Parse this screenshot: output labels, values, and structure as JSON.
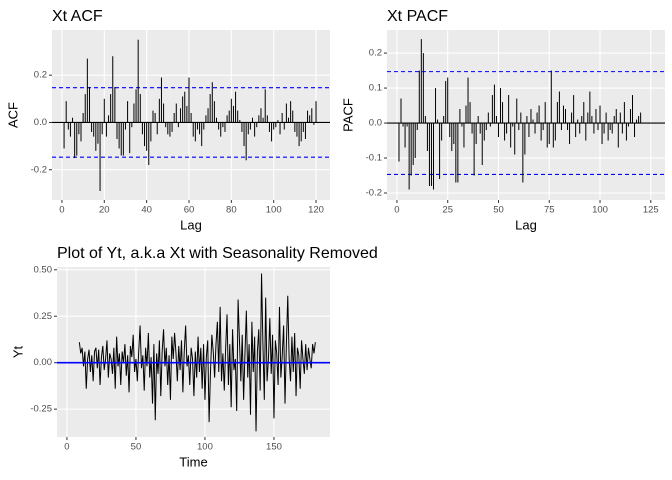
{
  "chart_data": [
    {
      "type": "bar",
      "title": "Xt ACF",
      "x_label": "Lag",
      "y_label": "ACF",
      "x": [
        1,
        2,
        3,
        4,
        5,
        6,
        7,
        8,
        9,
        10,
        11,
        12,
        13,
        14,
        15,
        16,
        17,
        18,
        19,
        20,
        21,
        22,
        23,
        24,
        25,
        26,
        27,
        28,
        29,
        30,
        31,
        32,
        33,
        34,
        35,
        36,
        37,
        38,
        39,
        40,
        41,
        42,
        43,
        44,
        45,
        46,
        47,
        48,
        49,
        50,
        51,
        52,
        53,
        54,
        55,
        56,
        57,
        58,
        59,
        60,
        61,
        62,
        63,
        64,
        65,
        66,
        67,
        68,
        69,
        70,
        71,
        72,
        73,
        74,
        75,
        76,
        77,
        78,
        79,
        80,
        81,
        82,
        83,
        84,
        85,
        86,
        87,
        88,
        89,
        90,
        91,
        92,
        93,
        94,
        95,
        96,
        97,
        98,
        99,
        100,
        101,
        102,
        103,
        104,
        105,
        106,
        107,
        108,
        109,
        110,
        111,
        112,
        113,
        114,
        115,
        116,
        117,
        118,
        119,
        120
      ],
      "values": [
        -0.11,
        0.09,
        -0.03,
        -0.06,
        0.02,
        -0.15,
        -0.14,
        -0.05,
        -0.08,
        0.04,
        0.12,
        0.27,
        0.15,
        -0.04,
        -0.06,
        -0.12,
        -0.09,
        -0.29,
        -0.05,
        0.1,
        -0.06,
        0.03,
        0.12,
        0.28,
        0.15,
        -0.07,
        -0.11,
        -0.14,
        -0.14,
        -0.03,
        0.09,
        -0.13,
        -0.02,
        0.08,
        0.14,
        0.35,
        0.12,
        -0.05,
        -0.1,
        -0.12,
        -0.18,
        -0.08,
        0.05,
        0.04,
        -0.05,
        0.1,
        0.19,
        0.08,
        -0.02,
        -0.05,
        -0.06,
        -0.04,
        0.04,
        0.08,
        -0.02,
        0.06,
        0.11,
        0.13,
        0.07,
        0.19,
        0.04,
        -0.06,
        -0.08,
        -0.03,
        -0.05,
        -0.1,
        -0.03,
        0.03,
        0.06,
        0.12,
        0.17,
        0.09,
        0.02,
        -0.03,
        -0.06,
        -0.02,
        -0.04,
        0.03,
        0.05,
        0.1,
        0.07,
        0.13,
        0.05,
        0.01,
        -0.04,
        -0.1,
        -0.16,
        -0.05,
        -0.03,
        0.02,
        -0.06,
        -0.02,
        0.03,
        0.06,
        0.02,
        0.14,
        0.03,
        -0.04,
        -0.08,
        -0.03,
        -0.02,
        0.01,
        -0.05,
        0.04,
        -0.03,
        0.08,
        0.02,
        0.09,
        0.05,
        -0.04,
        -0.06,
        -0.1,
        -0.08,
        -0.04,
        -0.07,
        0.05,
        0.03,
        0.06,
        -0.01,
        0.09
      ],
      "color": "#000000",
      "ci": [
        -0.147,
        0.147
      ],
      "ci_color": "#0000ff",
      "zero_color": "#000000",
      "xlim": [
        -4.7,
        126.6
      ],
      "xticks": [
        0,
        20,
        40,
        60,
        80,
        100,
        120
      ],
      "ylim": [
        -0.328,
        0.391
      ],
      "yticks": [
        -0.2,
        {
          "value": 0,
          "label": "0.0"
        },
        0.2
      ],
      "grid": true
    },
    {
      "type": "bar",
      "title": "Xt PACF",
      "x_label": "Lag",
      "y_label": "PACF",
      "x": [
        1,
        2,
        3,
        4,
        5,
        6,
        7,
        8,
        9,
        10,
        11,
        12,
        13,
        14,
        15,
        16,
        17,
        18,
        19,
        20,
        21,
        22,
        23,
        24,
        25,
        26,
        27,
        28,
        29,
        30,
        31,
        32,
        33,
        34,
        35,
        36,
        37,
        38,
        39,
        40,
        41,
        42,
        43,
        44,
        45,
        46,
        47,
        48,
        49,
        50,
        51,
        52,
        53,
        54,
        55,
        56,
        57,
        58,
        59,
        60,
        61,
        62,
        63,
        64,
        65,
        66,
        67,
        68,
        69,
        70,
        71,
        72,
        73,
        74,
        75,
        76,
        77,
        78,
        79,
        80,
        81,
        82,
        83,
        84,
        85,
        86,
        87,
        88,
        89,
        90,
        91,
        92,
        93,
        94,
        95,
        96,
        97,
        98,
        99,
        100,
        101,
        102,
        103,
        104,
        105,
        106,
        107,
        108,
        109,
        110,
        111,
        112,
        113,
        114,
        115,
        116,
        117,
        118,
        119,
        120
      ],
      "values": [
        -0.11,
        0.07,
        -0.01,
        -0.07,
        -0.01,
        -0.19,
        -0.15,
        -0.12,
        -0.1,
        -0.02,
        0.15,
        0.24,
        0.2,
        0.02,
        -0.08,
        -0.18,
        -0.18,
        -0.19,
        0.1,
        0.01,
        -0.16,
        -0.05,
        0.02,
        0.12,
        0.13,
        -0.04,
        -0.08,
        -0.06,
        -0.17,
        -0.17,
        0.04,
        -0.01,
        -0.07,
        0.05,
        0.13,
        0.06,
        -0.03,
        -0.15,
        -0.06,
        0.02,
        -0.03,
        -0.12,
        -0.05,
        -0.02,
        0.03,
        -0.01,
        0.08,
        0.11,
        0.02,
        -0.04,
        0.1,
        0.06,
        -0.05,
        -0.03,
        0.08,
        -0.07,
        -0.01,
        -0.09,
        0.07,
        -0.02,
        0.03,
        -0.17,
        -0.09,
        0.02,
        -0.04,
        0.04,
        0.01,
        -0.03,
        0.03,
        0.05,
        -0.05,
        -0.02,
        0.06,
        -0.07,
        -0.06,
        0.15,
        -0.07,
        -0.05,
        0.06,
        0.09,
        -0.02,
        0.05,
        0.04,
        -0.02,
        -0.06,
        0.03,
        0.08,
        -0.04,
        0.01,
        -0.03,
        0.02,
        0.06,
        -0.05,
        0.03,
        0.09,
        0.02,
        -0.03,
        0.04,
        -0.02,
        0.05,
        -0.06,
        -0.03,
        0.03,
        -0.05,
        -0.02,
        -0.03,
        0.02,
        0.04,
        -0.07,
        0.03,
        -0.03,
        0.06,
        -0.05,
        -0.01,
        0.04,
        0.08,
        -0.04,
        0.01,
        0.02,
        0.03
      ],
      "color": "#000000",
      "ci": [
        -0.147,
        0.147
      ],
      "ci_color": "#0000ff",
      "zero_color": "#000000",
      "xlim": [
        -4.9,
        132
      ],
      "xticks": [
        0,
        25,
        50,
        75,
        100,
        125
      ],
      "ylim": [
        -0.22,
        0.266
      ],
      "yticks": [
        -0.2,
        -0.1,
        {
          "value": 0,
          "label": "0.0"
        },
        0.1,
        0.2
      ],
      "grid": true
    },
    {
      "type": "line",
      "title": "Plot of Yt, a.k.a Xt with Seasonality Removed",
      "x_label": "Time",
      "y_label": "Yt",
      "x": [
        9,
        10,
        11,
        12,
        13,
        14,
        15,
        16,
        17,
        18,
        19,
        20,
        21,
        22,
        23,
        24,
        25,
        26,
        27,
        28,
        29,
        30,
        31,
        32,
        33,
        34,
        35,
        36,
        37,
        38,
        39,
        40,
        41,
        42,
        43,
        44,
        45,
        46,
        47,
        48,
        49,
        50,
        51,
        52,
        53,
        54,
        55,
        56,
        57,
        58,
        59,
        60,
        61,
        62,
        63,
        64,
        65,
        66,
        67,
        68,
        69,
        70,
        71,
        72,
        73,
        74,
        75,
        76,
        77,
        78,
        79,
        80,
        81,
        82,
        83,
        84,
        85,
        86,
        87,
        88,
        89,
        90,
        91,
        92,
        93,
        94,
        95,
        96,
        97,
        98,
        99,
        100,
        101,
        102,
        103,
        104,
        105,
        106,
        107,
        108,
        109,
        110,
        111,
        112,
        113,
        114,
        115,
        116,
        117,
        118,
        119,
        120,
        121,
        122,
        123,
        124,
        125,
        126,
        127,
        128,
        129,
        130,
        131,
        132,
        133,
        134,
        135,
        136,
        137,
        138,
        139,
        140,
        141,
        142,
        143,
        144,
        145,
        146,
        147,
        148,
        149,
        150,
        151,
        152,
        153,
        154,
        155,
        156,
        157,
        158,
        159,
        160,
        161,
        162,
        163,
        164,
        165,
        166,
        167,
        168,
        169,
        170,
        171,
        172,
        173,
        174,
        175,
        176,
        177,
        178,
        179,
        180
      ],
      "values": [
        0.11,
        0.05,
        0.08,
        -0.02,
        0.06,
        -0.14,
        0.02,
        0.07,
        -0.05,
        0.04,
        -0.1,
        0.06,
        0.08,
        -0.03,
        0.07,
        -0.12,
        0.03,
        0.09,
        -0.04,
        0.02,
        0.12,
        -0.08,
        0.05,
        0.02,
        -0.06,
        0.08,
        -0.14,
        0.14,
        -0.02,
        0.05,
        -0.12,
        0.06,
        0.0,
        0.1,
        -0.07,
        0.04,
        -0.16,
        0.09,
        0.03,
        0.15,
        -0.05,
        0.02,
        -0.1,
        0.06,
        0.2,
        -0.03,
        0.04,
        -0.15,
        0.08,
        -0.02,
        0.16,
        -0.08,
        0.03,
        -0.22,
        0.1,
        -0.31,
        0.05,
        -0.06,
        0.12,
        -0.18,
        0.06,
        0.18,
        -0.02,
        0.08,
        -0.12,
        0.04,
        -0.2,
        0.14,
        0.02,
        0.16,
        0.05,
        -0.1,
        0.09,
        -0.04,
        0.12,
        -0.16,
        0.06,
        0.2,
        -0.02,
        0.04,
        -0.12,
        0.08,
        0.02,
        -0.18,
        0.06,
        -0.08,
        0.14,
        -0.05,
        0.08,
        -0.14,
        0.1,
        -0.2,
        0.03,
        0.12,
        -0.32,
        -0.05,
        0.15,
        0.06,
        -0.08,
        0.1,
        0.22,
        -0.05,
        0.3,
        -0.1,
        0.05,
        -0.15,
        0.08,
        0.26,
        -0.12,
        0.1,
        -0.24,
        0.18,
        -0.04,
        0.02,
        -0.26,
        0.34,
        0.12,
        -0.1,
        0.15,
        -0.2,
        0.05,
        0.28,
        -0.08,
        0.1,
        -0.28,
        0.22,
        -0.05,
        0.14,
        -0.37,
        0.06,
        0.18,
        -0.15,
        0.48,
        0.1,
        -0.2,
        0.35,
        -0.1,
        0.02,
        0.24,
        -0.06,
        0.15,
        -0.3,
        0.12,
        0.05,
        -0.12,
        0.3,
        -0.08,
        0.04,
        0.2,
        -0.22,
        0.1,
        0.36,
        0.02,
        -0.1,
        0.14,
        -0.05,
        0.16,
        -0.18,
        0.08,
        0.04,
        -0.14,
        0.12,
        0.02,
        -0.06,
        0.1,
        -0.04,
        0.08,
        0.02,
        -0.03,
        0.1,
        0.05,
        0.11
      ],
      "color": "#000000",
      "hline": 0,
      "hline_color": "#0000ff",
      "xlim": [
        -7.2,
        190.6
      ],
      "xticks": [
        0,
        50,
        100,
        150
      ],
      "ylim": [
        -0.4,
        0.515
      ],
      "yticks": [
        -0.25,
        {
          "value": 0,
          "label": "0.00"
        },
        0.25,
        {
          "value": 0.5,
          "label": "0.50"
        }
      ],
      "grid": true
    }
  ]
}
